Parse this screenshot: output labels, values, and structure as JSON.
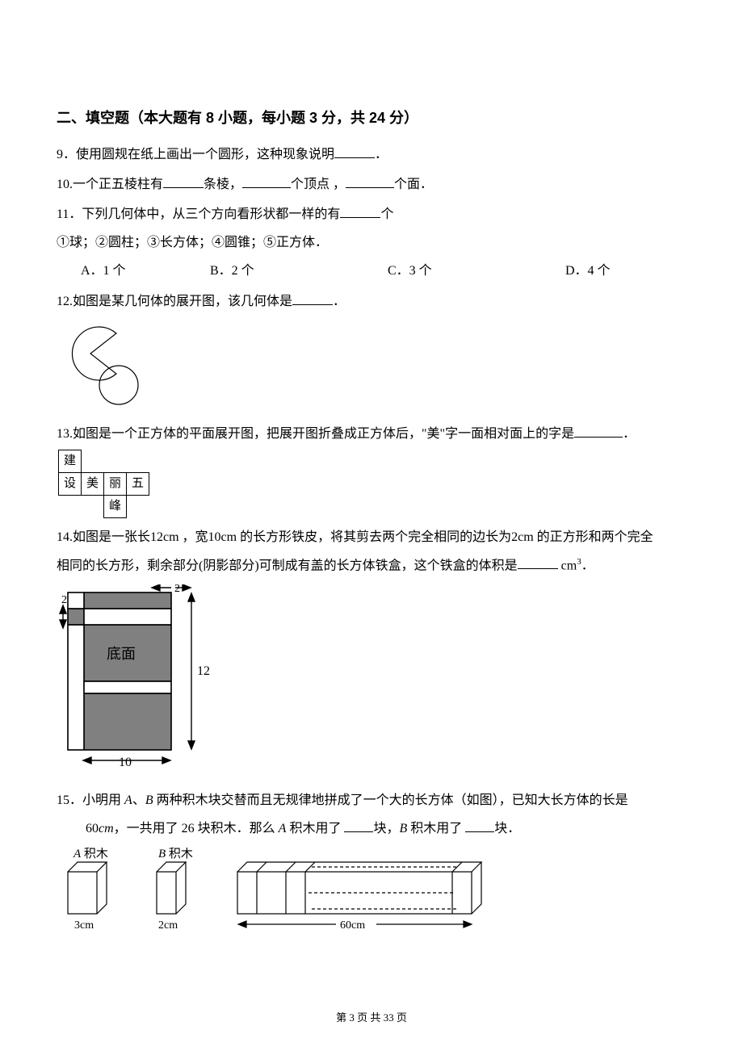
{
  "sectionTitle": "二、填空题（本大题有 8 小题，每小题 3 分，共 24 分）",
  "q9": {
    "num": "9．",
    "text_a": "使用圆规在纸上画出一个圆形，这种现象说明",
    "text_b": "．"
  },
  "q10": {
    "num": "10.",
    "a": "一个正五棱柱有",
    "b": "条棱，",
    "c": "个顶点 ，",
    "d": "个面．"
  },
  "q11": {
    "num": "11．",
    "text_a": "下列几何体中，从三个方向看形状都一样的有",
    "text_b": "个",
    "list": "①球；②圆柱；③长方体；④圆锥；⑤正方体．",
    "optA": "A．1 个",
    "optB": "B．2 个",
    "optC": "C．3 个",
    "optD": "D．4 个"
  },
  "q12": {
    "num": "12.",
    "text_a": "如图是某几何体的展开图，该几何体是",
    "text_b": "．",
    "svg": {
      "stroke": "#000000",
      "strokeWidth": 1.2,
      "fill": "none"
    }
  },
  "q13": {
    "num": "13.",
    "text_a": "如图是一个正方体的平面展开图，把展开图折叠成正方体后，\"美\"字一面相对面上的字是",
    "text_b": "．",
    "cells": {
      "r0c0": "建",
      "r1c0": "设",
      "r1c1": "美",
      "r1c2": "丽",
      "r1c3": "五",
      "r2c2": "峰"
    }
  },
  "q14": {
    "num": "14.",
    "text_a": "如图是一张长12cm ，宽10cm 的长方形铁皮，将其剪去两个完全相同的边长为2cm 的正方形和两个完全",
    "line2_a": "相同的长方形，剩余部分(阴影部分)可制成有盖的长方体铁盒，这个铁盒的体积是",
    "line2_b": " cm",
    "line2_c": "．",
    "fig": {
      "fill": "#808080",
      "stroke": "#000000",
      "label_bottom": "底面",
      "label_10": "10",
      "label_12": "12",
      "label_2a": "2",
      "label_2b": "2"
    }
  },
  "q15": {
    "num": "15．",
    "text_a": "小明用 ",
    "A": "A",
    "text_b": "、",
    "B": "B",
    "text_c": " 两种积木块交替而且无规律地拼成了一个大的长方体（如图），已知大长方体的长是",
    "line2_a": "60",
    "line2_unit": "cm",
    "line2_b": "，一共用了 26 块积木．那么 ",
    "line2_c": " 积木用了 ",
    "line2_d": "块，",
    "line2_e": " 积木用了 ",
    "line2_f": "块．",
    "fig": {
      "labelA": "A 积木",
      "labelB": "B 积木",
      "dim3": "3cm",
      "dim2": "2cm",
      "dim60": "60cm",
      "stroke": "#000000"
    }
  },
  "footer": {
    "a": "第 ",
    "pageNum": "3",
    "b": " 页 共 ",
    "total": "33",
    "c": " 页"
  }
}
